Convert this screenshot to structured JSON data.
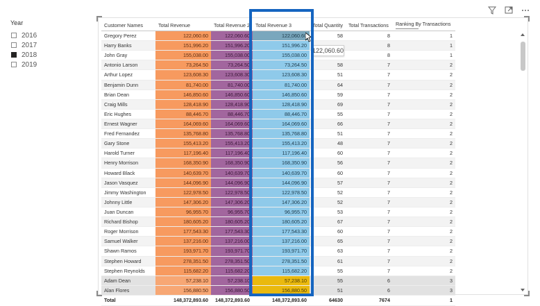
{
  "slicer": {
    "title": "Year",
    "items": [
      {
        "label": "2016",
        "checked": false
      },
      {
        "label": "2017",
        "checked": false
      },
      {
        "label": "2018",
        "checked": true
      },
      {
        "label": "2019",
        "checked": false
      }
    ]
  },
  "header_icons": [
    "filter-icon",
    "focus-mode-icon",
    "more-options-icon"
  ],
  "table": {
    "columns": [
      "Customer Names",
      "Total Revenue",
      "Total Revenue 2",
      "Total Revenue 3",
      "Total Quantity",
      "Total Transactions",
      "Ranking By Transactions"
    ],
    "rows": [
      [
        "Gregory Perez",
        "122,060.60",
        "122,060.60",
        "122,060.60",
        "58",
        "8",
        "1"
      ],
      [
        "Harry Banks",
        "151,996.20",
        "151,996.20",
        "151,996.20",
        "",
        "8",
        "1"
      ],
      [
        "John Gray",
        "155,038.00",
        "155,038.00",
        "155,038.00",
        "",
        "8",
        "1"
      ],
      [
        "Antonio Larson",
        "73,264.50",
        "73,264.50",
        "73,264.50",
        "58",
        "7",
        "2"
      ],
      [
        "Arthur Lopez",
        "123,608.30",
        "123,608.30",
        "123,608.30",
        "51",
        "7",
        "2"
      ],
      [
        "Benjamin Dunn",
        "81,740.00",
        "81,740.00",
        "81,740.00",
        "64",
        "7",
        "2"
      ],
      [
        "Brian Dean",
        "146,850.60",
        "146,850.60",
        "146,850.60",
        "59",
        "7",
        "2"
      ],
      [
        "Craig Mills",
        "128,418.90",
        "128,418.90",
        "128,418.90",
        "69",
        "7",
        "2"
      ],
      [
        "Eric Hughes",
        "88,446.70",
        "88,446.70",
        "88,446.70",
        "55",
        "7",
        "2"
      ],
      [
        "Ernest Wagner",
        "164,069.60",
        "164,069.60",
        "164,069.60",
        "66",
        "7",
        "2"
      ],
      [
        "Fred Fernandez",
        "135,768.80",
        "135,768.80",
        "135,768.80",
        "51",
        "7",
        "2"
      ],
      [
        "Gary Stone",
        "155,413.20",
        "155,413.20",
        "155,413.20",
        "48",
        "7",
        "2"
      ],
      [
        "Harold Turner",
        "117,196.40",
        "117,196.40",
        "117,196.40",
        "60",
        "7",
        "2"
      ],
      [
        "Henry Morrison",
        "168,350.90",
        "168,350.90",
        "168,350.90",
        "56",
        "7",
        "2"
      ],
      [
        "Howard Black",
        "140,639.70",
        "140,639.70",
        "140,639.70",
        "60",
        "7",
        "2"
      ],
      [
        "Jason Vasquez",
        "144,096.90",
        "144,096.90",
        "144,096.90",
        "57",
        "7",
        "2"
      ],
      [
        "Jimmy Washington",
        "122,978.50",
        "122,978.50",
        "122,978.50",
        "52",
        "7",
        "2"
      ],
      [
        "Johnny Little",
        "147,306.20",
        "147,306.20",
        "147,306.20",
        "52",
        "7",
        "2"
      ],
      [
        "Juan Duncan",
        "96,955.70",
        "96,955.70",
        "96,955.70",
        "53",
        "7",
        "2"
      ],
      [
        "Richard Bishop",
        "180,605.20",
        "180,605.20",
        "180,605.20",
        "67",
        "7",
        "2"
      ],
      [
        "Roger Morrison",
        "177,543.30",
        "177,543.30",
        "177,543.30",
        "60",
        "7",
        "2"
      ],
      [
        "Samuel Walker",
        "137,216.00",
        "137,216.00",
        "137,216.00",
        "65",
        "7",
        "2"
      ],
      [
        "Shawn Ramos",
        "193,971.70",
        "193,971.70",
        "193,971.70",
        "63",
        "7",
        "2"
      ],
      [
        "Stephen Howard",
        "278,351.50",
        "278,351.50",
        "278,351.50",
        "61",
        "7",
        "2"
      ],
      [
        "Stephen Reynolds",
        "115,682.20",
        "115,682.20",
        "115,682.20",
        "55",
        "7",
        "2"
      ],
      [
        "Adam Dean",
        "57,238.10",
        "57,238.10",
        "57,238.10",
        "55",
        "6",
        "3"
      ],
      [
        "Alan Flores",
        "156,880.50",
        "156,880.50",
        "156,880.50",
        "51",
        "6",
        "3"
      ]
    ],
    "total": [
      "Total",
      "148,372,893.60",
      "148,372,893.60",
      "148,372,893.60",
      "64630",
      "7674",
      "1"
    ]
  },
  "tooltip": {
    "text": "122,060.60"
  },
  "colors": {
    "rev1": "#f79a5f",
    "rev2": "#a2669e",
    "rev3": "#8fcaea",
    "rev3_selected": "#7aa7bd",
    "rev3_rank3": "#eab90e",
    "highlight_box": "#1565c0"
  }
}
